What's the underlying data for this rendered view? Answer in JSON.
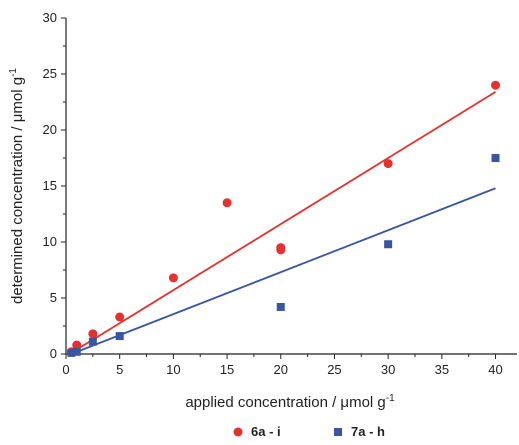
{
  "chart_data": {
    "type": "scatter",
    "xlabel": "applied concentration / μmol g",
    "xlabel_sup": "-1",
    "ylabel": "determined concentration / μmol g",
    "ylabel_sup": "-1",
    "xlim": [
      0,
      42
    ],
    "ylim": [
      0,
      30
    ],
    "x_ticks": [
      0,
      5,
      10,
      15,
      20,
      25,
      30,
      35,
      40
    ],
    "y_ticks": [
      0,
      5,
      10,
      15,
      20,
      25,
      30
    ],
    "grid": false,
    "legend_position": "bottom-center",
    "series": [
      {
        "name": "6a - i",
        "marker": "circle",
        "color": "#e53030",
        "points": [
          {
            "x": 0.5,
            "y": 0.2
          },
          {
            "x": 1,
            "y": 0.8
          },
          {
            "x": 2.5,
            "y": 1.8
          },
          {
            "x": 5,
            "y": 3.3
          },
          {
            "x": 10,
            "y": 6.8
          },
          {
            "x": 15,
            "y": 13.5
          },
          {
            "x": 20,
            "y": 9.3
          },
          {
            "x": 20,
            "y": 9.5
          },
          {
            "x": 30,
            "y": 17.0
          },
          {
            "x": 40,
            "y": 24.0
          }
        ],
        "fit": {
          "x0": 0.5,
          "y0": 0.1,
          "x1": 40,
          "y1": 23.4
        }
      },
      {
        "name": "7a - h",
        "marker": "square",
        "color": "#3a55a4",
        "points": [
          {
            "x": 0.5,
            "y": 0.1
          },
          {
            "x": 1,
            "y": 0.2
          },
          {
            "x": 2.5,
            "y": 1.1
          },
          {
            "x": 5,
            "y": 1.6
          },
          {
            "x": 20,
            "y": 4.2
          },
          {
            "x": 30,
            "y": 9.8
          },
          {
            "x": 40,
            "y": 17.5
          }
        ],
        "fit": {
          "x0": 0.5,
          "y0": 0.0,
          "x1": 40,
          "y1": 14.8
        }
      }
    ]
  }
}
